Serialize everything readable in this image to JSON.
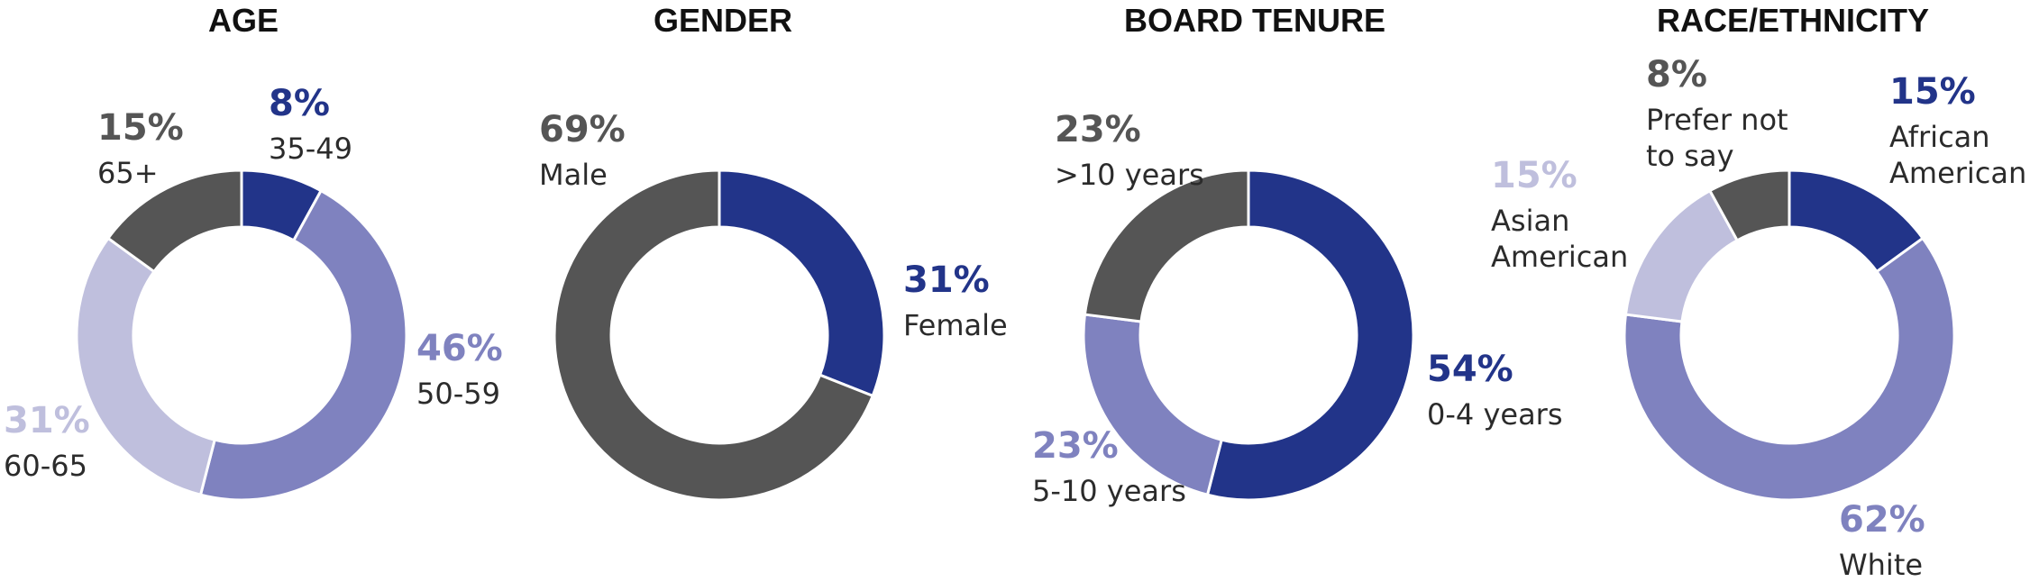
{
  "colors": {
    "dark_blue": "#223489",
    "mid_purple": "#7f82bf",
    "light_lavender": "#bfbfdd",
    "dark_gray": "#555555",
    "label_text": "#2b2b2b",
    "title_text": "#111111"
  },
  "chart_data": [
    {
      "type": "pie",
      "title": "AGE",
      "slices": [
        {
          "label": "35-49",
          "value": 8,
          "value_label": "8%",
          "color": "#223489"
        },
        {
          "label": "50-59",
          "value": 46,
          "value_label": "46%",
          "color": "#7f82bf"
        },
        {
          "label": "60-65",
          "value": 31,
          "value_label": "31%",
          "color": "#bfbfdd"
        },
        {
          "label": "65+",
          "value": 15,
          "value_label": "15%",
          "color": "#555555"
        }
      ]
    },
    {
      "type": "pie",
      "title": "GENDER",
      "slices": [
        {
          "label": "Female",
          "value": 31,
          "value_label": "31%",
          "color": "#223489"
        },
        {
          "label": "Male",
          "value": 69,
          "value_label": "69%",
          "color": "#555555"
        }
      ]
    },
    {
      "type": "pie",
      "title": "BOARD TENURE",
      "slices": [
        {
          "label": "0-4 years",
          "value": 54,
          "value_label": "54%",
          "color": "#223489"
        },
        {
          "label": "5-10 years",
          "value": 23,
          "value_label": "23%",
          "color": "#7f82bf"
        },
        {
          "label": ">10 years",
          "value": 23,
          "value_label": "23%",
          "color": "#555555"
        }
      ]
    },
    {
      "type": "pie",
      "title": "RACE/ETHNICITY",
      "slices": [
        {
          "label": "African American",
          "value": 15,
          "value_label": "15%",
          "color": "#223489"
        },
        {
          "label": "White",
          "value": 62,
          "value_label": "62%",
          "color": "#7f82bf"
        },
        {
          "label": "Asian American",
          "value": 15,
          "value_label": "15%",
          "color": "#bfbfdd"
        },
        {
          "label": "Prefer not to say",
          "value": 8,
          "value_label": "8%",
          "color": "#555555"
        }
      ]
    }
  ]
}
